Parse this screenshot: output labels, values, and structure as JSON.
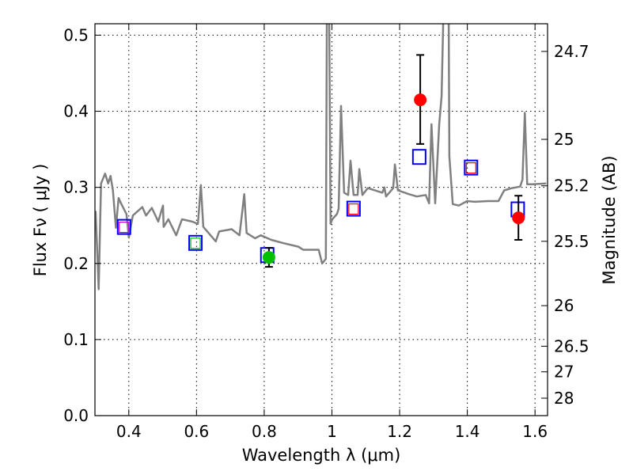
{
  "chart_data": {
    "type": "line",
    "title": "",
    "xlabel": "Wavelength  λ (μm)",
    "ylabel": "Flux  Fν  ( μJy )",
    "ylabel_right": "Magnitude (AB)",
    "xlim": [
      0.3,
      1.637
    ],
    "ylim": [
      0.0,
      0.515
    ],
    "grid": true,
    "xticks": [
      0.4,
      0.6,
      0.8,
      1.0,
      1.2,
      1.4,
      1.6
    ],
    "xtick_labels": [
      "0.4",
      "0.6",
      "0.8",
      "1",
      "1.2",
      "1.4",
      "1.6"
    ],
    "yticks": [
      0.0,
      0.1,
      0.2,
      0.3,
      0.4,
      0.5
    ],
    "ytick_labels": [
      "0.0",
      "0.1",
      "0.2",
      "0.3",
      "0.4",
      "0.5"
    ],
    "right_ticks_mag": [
      24.7,
      25,
      25.2,
      25.5,
      26,
      26.5,
      27,
      28
    ],
    "right_tick_labels": [
      "24.7",
      "25",
      "25.2",
      "25.5",
      "26",
      "26.5",
      "27",
      "28"
    ],
    "spectrum": {
      "name": "model spectrum",
      "color": "#808080",
      "points": [
        [
          0.3,
          0.265
        ],
        [
          0.302,
          0.268
        ],
        [
          0.311,
          0.166
        ],
        [
          0.318,
          0.305
        ],
        [
          0.33,
          0.318
        ],
        [
          0.339,
          0.305
        ],
        [
          0.346,
          0.315
        ],
        [
          0.353,
          0.296
        ],
        [
          0.362,
          0.247
        ],
        [
          0.37,
          0.286
        ],
        [
          0.377,
          0.279
        ],
        [
          0.393,
          0.265
        ],
        [
          0.4,
          0.234
        ],
        [
          0.412,
          0.263
        ],
        [
          0.44,
          0.274
        ],
        [
          0.451,
          0.263
        ],
        [
          0.468,
          0.273
        ],
        [
          0.487,
          0.255
        ],
        [
          0.501,
          0.276
        ],
        [
          0.503,
          0.248
        ],
        [
          0.517,
          0.258
        ],
        [
          0.54,
          0.237
        ],
        [
          0.557,
          0.258
        ],
        [
          0.587,
          0.255
        ],
        [
          0.604,
          0.252
        ],
        [
          0.613,
          0.303
        ],
        [
          0.62,
          0.248
        ],
        [
          0.632,
          0.242
        ],
        [
          0.657,
          0.229
        ],
        [
          0.667,
          0.242
        ],
        [
          0.704,
          0.245
        ],
        [
          0.727,
          0.237
        ],
        [
          0.741,
          0.291
        ],
        [
          0.748,
          0.24
        ],
        [
          0.773,
          0.233
        ],
        [
          0.79,
          0.237
        ],
        [
          0.821,
          0.231
        ],
        [
          0.854,
          0.227
        ],
        [
          0.901,
          0.222
        ],
        [
          0.915,
          0.218
        ],
        [
          0.961,
          0.218
        ],
        [
          0.971,
          0.2
        ],
        [
          0.982,
          0.206
        ],
        [
          0.985,
          0.52
        ],
        [
          0.992,
          0.52
        ],
        [
          0.996,
          0.252
        ],
        [
          1.001,
          0.258
        ],
        [
          1.015,
          0.265
        ],
        [
          1.02,
          0.272
        ],
        [
          1.027,
          0.407
        ],
        [
          1.036,
          0.293
        ],
        [
          1.048,
          0.29
        ],
        [
          1.055,
          0.335
        ],
        [
          1.064,
          0.29
        ],
        [
          1.076,
          0.29
        ],
        [
          1.081,
          0.324
        ],
        [
          1.09,
          0.29
        ],
        [
          1.106,
          0.299
        ],
        [
          1.149,
          0.293
        ],
        [
          1.155,
          0.3
        ],
        [
          1.16,
          0.288
        ],
        [
          1.181,
          0.299
        ],
        [
          1.186,
          0.33
        ],
        [
          1.195,
          0.296
        ],
        [
          1.228,
          0.291
        ],
        [
          1.251,
          0.288
        ],
        [
          1.277,
          0.29
        ],
        [
          1.287,
          0.279
        ],
        [
          1.294,
          0.383
        ],
        [
          1.305,
          0.279
        ],
        [
          1.317,
          0.383
        ],
        [
          1.324,
          0.42
        ],
        [
          1.329,
          0.52
        ],
        [
          1.345,
          0.52
        ],
        [
          1.347,
          0.341
        ],
        [
          1.357,
          0.278
        ],
        [
          1.375,
          0.276
        ],
        [
          1.399,
          0.282
        ],
        [
          1.422,
          0.281
        ],
        [
          1.462,
          0.282
        ],
        [
          1.492,
          0.282
        ],
        [
          1.509,
          0.296
        ],
        [
          1.532,
          0.299
        ],
        [
          1.556,
          0.301
        ],
        [
          1.563,
          0.31
        ],
        [
          1.57,
          0.398
        ],
        [
          1.577,
          0.304
        ],
        [
          1.593,
          0.304
        ],
        [
          1.633,
          0.305
        ]
      ]
    },
    "model_band_fluxes": {
      "name": "model band fluxes",
      "edge_color": "#0000ff",
      "points": [
        [
          0.386,
          0.248
        ],
        [
          0.597,
          0.227
        ],
        [
          0.809,
          0.211
        ],
        [
          1.064,
          0.272
        ],
        [
          1.258,
          0.34
        ],
        [
          1.411,
          0.326
        ],
        [
          1.549,
          0.271
        ]
      ]
    },
    "inner_squares": {
      "points": [
        [
          0.386,
          0.248,
          "#c000c0"
        ],
        [
          0.597,
          0.227,
          "#00c000"
        ],
        [
          1.064,
          0.272,
          "#ff0000"
        ],
        [
          1.411,
          0.326,
          "#ff0000"
        ]
      ]
    },
    "observed": {
      "name": "observed photometry",
      "points": [
        {
          "x": 0.814,
          "y": 0.208,
          "err_lo": 0.0125,
          "err_hi": 0.0125,
          "color": "#00c000"
        },
        {
          "x": 1.261,
          "y": 0.415,
          "err_lo": 0.058,
          "err_hi": 0.059,
          "color": "#ff0000"
        },
        {
          "x": 1.551,
          "y": 0.26,
          "err_lo": 0.029,
          "err_hi": 0.029,
          "color": "#ff0000"
        }
      ]
    }
  }
}
